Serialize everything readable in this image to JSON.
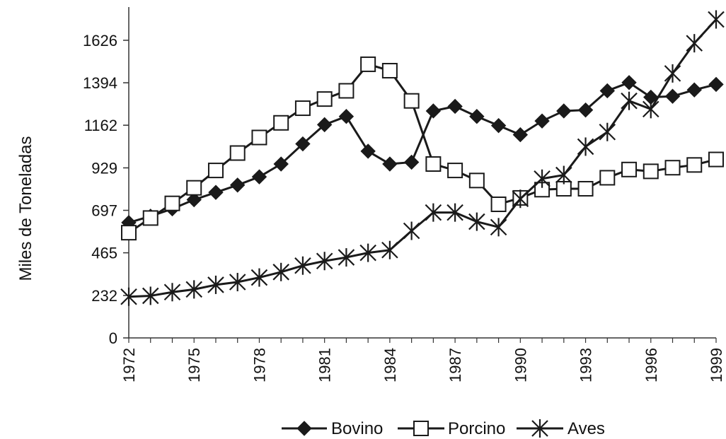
{
  "chart_data": {
    "type": "line",
    "title": "",
    "xlabel": "",
    "ylabel": "Miles de Toneladas",
    "x": [
      1972,
      1973,
      1974,
      1975,
      1976,
      1977,
      1978,
      1979,
      1980,
      1981,
      1982,
      1983,
      1984,
      1985,
      1986,
      1987,
      1988,
      1989,
      1990,
      1991,
      1992,
      1993,
      1994,
      1995,
      1996,
      1997,
      1998,
      1999
    ],
    "x_ticks": [
      "1972",
      "1975",
      "1978",
      "1981",
      "1984",
      "1987",
      "1990",
      "1993",
      "1996",
      "1999"
    ],
    "y_ticks": [
      "0",
      "232",
      "465",
      "697",
      "929",
      "1162",
      "1394",
      "1626"
    ],
    "ylim": [
      0,
      1800
    ],
    "grid": false,
    "legend_position": "bottom",
    "series": [
      {
        "name": "Bovino",
        "marker": "diamond-filled",
        "color": "#1a1a1a",
        "values": [
          630,
          665,
          705,
          755,
          795,
          835,
          880,
          950,
          1060,
          1165,
          1210,
          1020,
          950,
          960,
          1240,
          1265,
          1210,
          1160,
          1110,
          1185,
          1240,
          1245,
          1350,
          1395,
          1315,
          1320,
          1355,
          1385
        ]
      },
      {
        "name": "Porcino",
        "marker": "square-open",
        "color": "#1a1a1a",
        "values": [
          575,
          655,
          735,
          820,
          915,
          1010,
          1095,
          1175,
          1255,
          1305,
          1350,
          1495,
          1460,
          1295,
          950,
          915,
          860,
          730,
          765,
          810,
          815,
          815,
          875,
          920,
          910,
          930,
          945,
          975
        ]
      },
      {
        "name": "Aves",
        "marker": "asterisk",
        "color": "#1a1a1a",
        "values": [
          225,
          230,
          250,
          265,
          290,
          305,
          330,
          360,
          395,
          420,
          440,
          465,
          480,
          585,
          685,
          685,
          635,
          605,
          760,
          870,
          890,
          1045,
          1125,
          1295,
          1250,
          1445,
          1610,
          1740
        ]
      }
    ]
  }
}
